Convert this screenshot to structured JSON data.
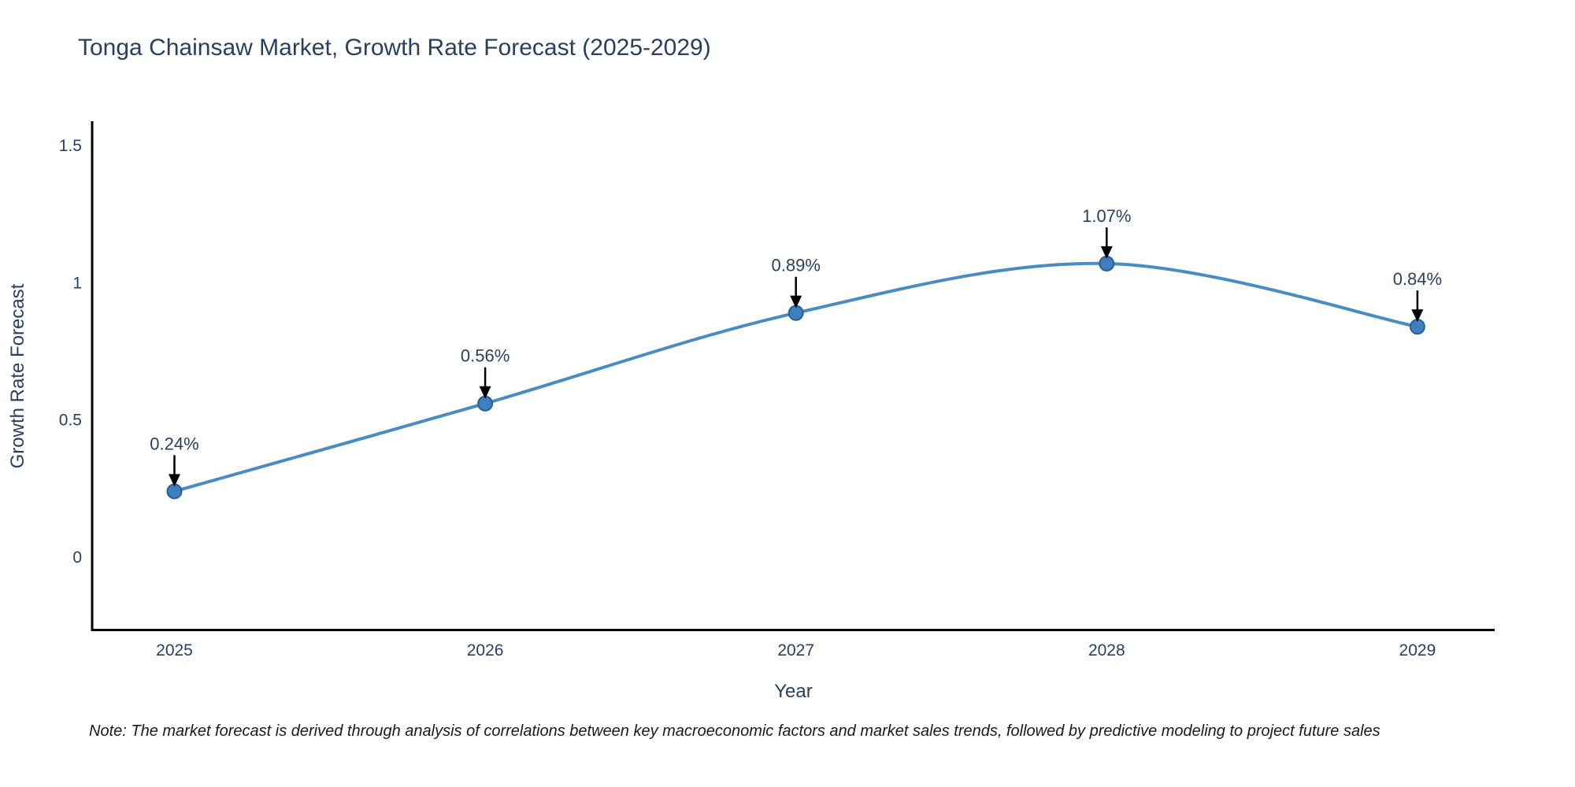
{
  "title": "Tonga Chainsaw Market, Growth Rate Forecast (2025-2029)",
  "note": "Note: The market forecast is derived through analysis of correlations between key macroeconomic factors and market sales trends, followed by predictive modeling to project future sales",
  "chart_data": {
    "type": "line",
    "title": "Tonga Chainsaw Market, Growth Rate Forecast (2025-2029)",
    "xlabel": "Year",
    "ylabel": "Growth Rate Forecast",
    "x": [
      2025,
      2026,
      2027,
      2028,
      2029
    ],
    "x_tick_labels": [
      "2025",
      "2026",
      "2027",
      "2028",
      "2029"
    ],
    "values": [
      0.24,
      0.56,
      0.89,
      1.07,
      0.84
    ],
    "point_labels": [
      "0.24%",
      "0.56%",
      "0.89%",
      "1.07%",
      "0.84%"
    ],
    "yticks": [
      0,
      0.5,
      1,
      1.5
    ],
    "ytick_labels": [
      "0",
      "0.5",
      "1",
      "1.5"
    ],
    "ylim": [
      -0.26,
      1.59
    ],
    "grid": false,
    "legend": false,
    "smooth": true,
    "colors": {
      "line": "#4a8bc2",
      "marker_fill": "#3f7fbe",
      "marker_edge": "#2a608f",
      "axis_line": "#000000",
      "arrow": "#000000",
      "text": "#2a3f5f"
    }
  }
}
